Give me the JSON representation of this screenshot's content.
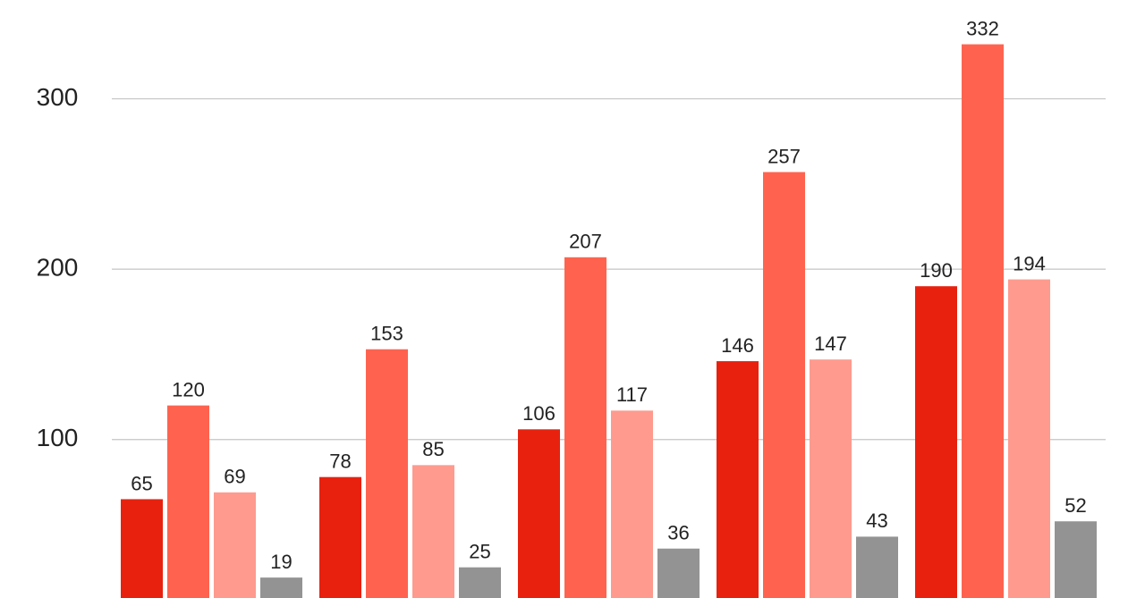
{
  "chart_data": {
    "type": "bar",
    "series": [
      {
        "color": "#e8210f",
        "values": [
          65,
          78,
          106,
          146,
          190
        ]
      },
      {
        "color": "#ff634f",
        "values": [
          120,
          153,
          207,
          257,
          332
        ]
      },
      {
        "color": "#ff9a8e",
        "values": [
          69,
          85,
          117,
          147,
          194
        ]
      },
      {
        "color": "#939393",
        "values": [
          19,
          25,
          36,
          43,
          52
        ]
      }
    ],
    "ylim": [
      7,
      358
    ],
    "yticks": [
      100,
      200,
      300
    ],
    "grid": true
  }
}
